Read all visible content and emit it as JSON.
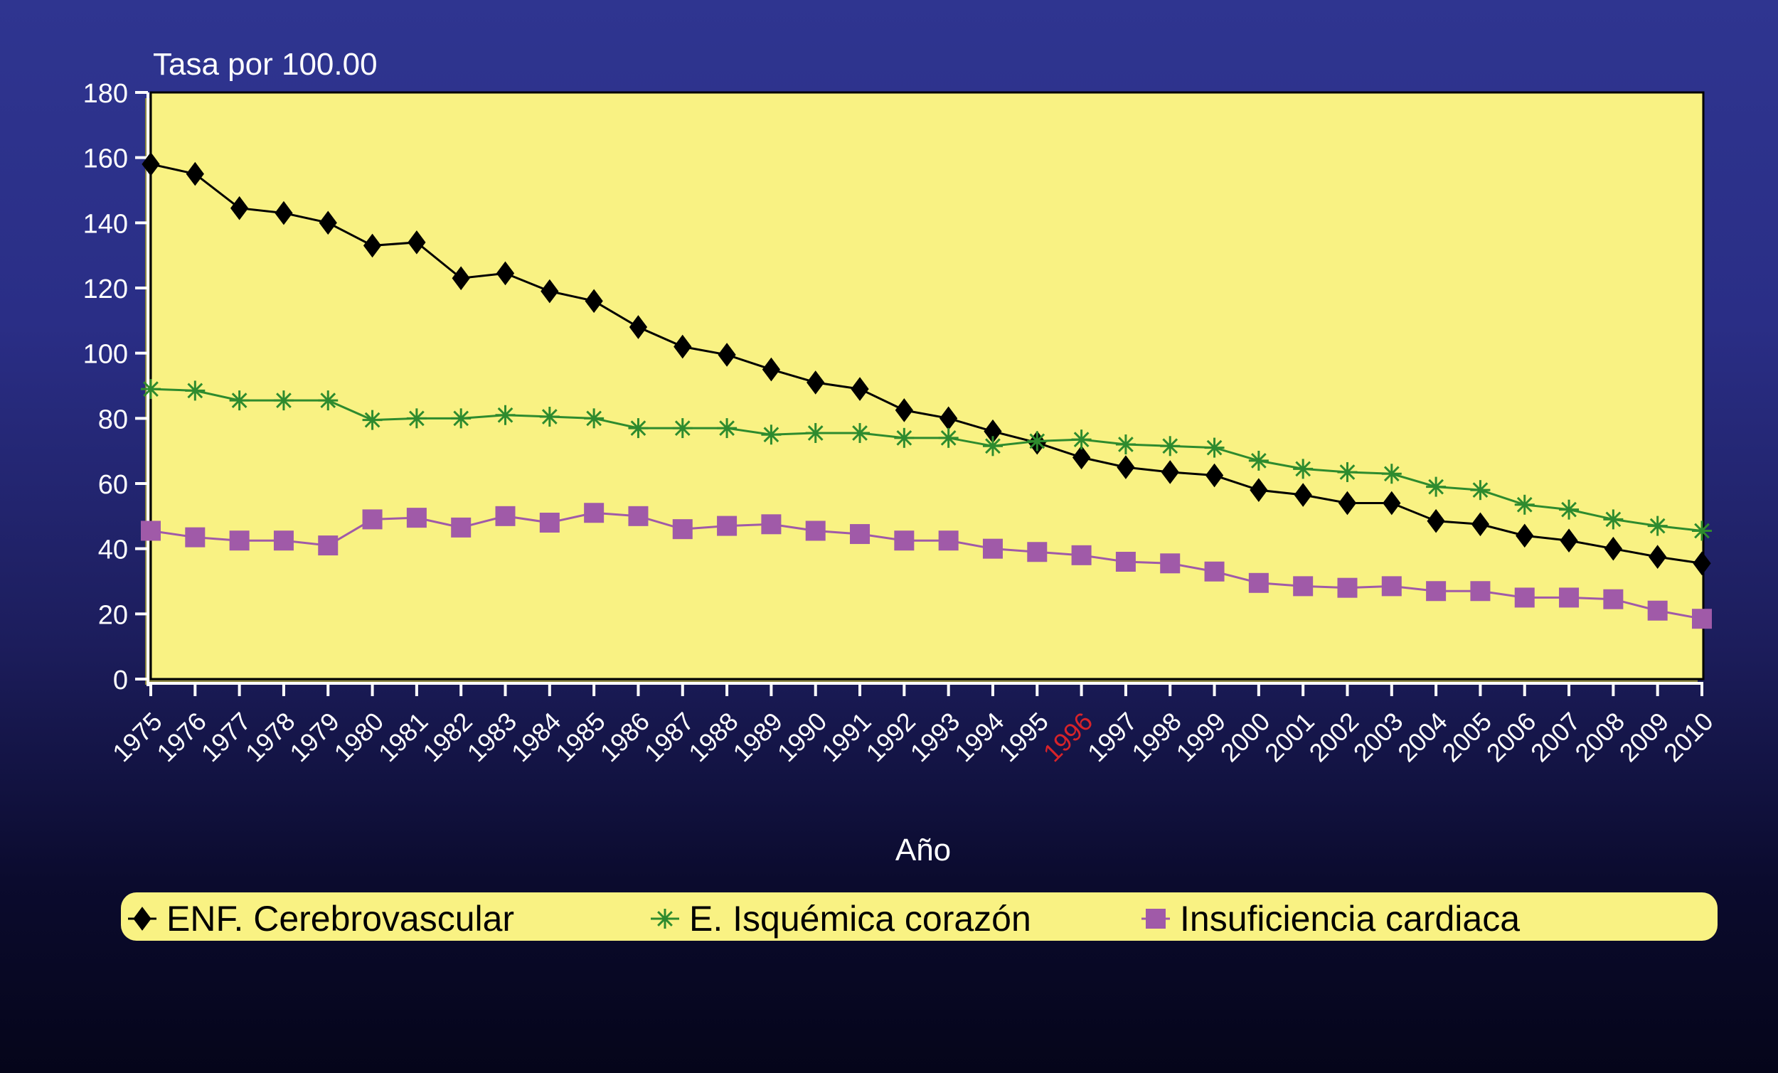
{
  "chart_data": {
    "type": "line",
    "title": "",
    "ylabel": "Tasa por 100.00",
    "xlabel": "Año",
    "ylim": [
      0,
      180
    ],
    "yticks": [
      "0",
      "20",
      "40",
      "60",
      "80",
      "100",
      "120",
      "140",
      "160",
      "180"
    ],
    "highlight_category": "1996",
    "highlight_color": "#d8232a",
    "background_color": "#f9f283",
    "categories": [
      "1975",
      "1976",
      "1977",
      "1978",
      "1979",
      "1980",
      "1981",
      "1982",
      "1983",
      "1984",
      "1985",
      "1986",
      "1987",
      "1988",
      "1989",
      "1990",
      "1991",
      "1992",
      "1993",
      "1994",
      "1995",
      "1996",
      "1997",
      "1998",
      "1999",
      "2000",
      "2001",
      "2002",
      "2003",
      "2004",
      "2005",
      "2006",
      "2007",
      "2008",
      "2009",
      "2010"
    ],
    "series": [
      {
        "name": "ENF. Cerebrovascular",
        "color": "#000000",
        "marker": "diamond",
        "values": [
          158,
          155,
          144.5,
          143,
          140,
          133,
          134,
          123,
          124.5,
          119,
          116,
          108,
          102,
          99.5,
          95,
          91,
          89,
          82.5,
          80,
          76,
          72.5,
          68,
          65,
          63.5,
          62.5,
          58,
          56.5,
          54,
          54,
          48.5,
          47.5,
          44,
          42.5,
          40,
          37.5,
          35.5
        ]
      },
      {
        "name": "E. Isquémica corazón",
        "color": "#2e8b2e",
        "marker": "star",
        "values": [
          89,
          88.5,
          85.5,
          85.5,
          85.5,
          79.5,
          80,
          80,
          81,
          80.5,
          80,
          77,
          77,
          77,
          75,
          75.5,
          75.5,
          74,
          74,
          71.5,
          73,
          73.5,
          72,
          71.5,
          71,
          67,
          64.5,
          63.5,
          63,
          59,
          58,
          53.5,
          52,
          49,
          47,
          45.5
        ]
      },
      {
        "name": "Insuficiencia cardiaca",
        "color": "#a05aa8",
        "marker": "square",
        "values": [
          45.5,
          43.5,
          42.5,
          42.5,
          41,
          49,
          49.5,
          46.5,
          50,
          48,
          51,
          50,
          46,
          47,
          47.5,
          45.5,
          44.5,
          42.5,
          42.5,
          40,
          39,
          38,
          36,
          35.5,
          33,
          29.5,
          28.5,
          28,
          28.5,
          27,
          27,
          25,
          25,
          24.5,
          21,
          18.5
        ]
      }
    ],
    "legend_placement": "bottom"
  }
}
